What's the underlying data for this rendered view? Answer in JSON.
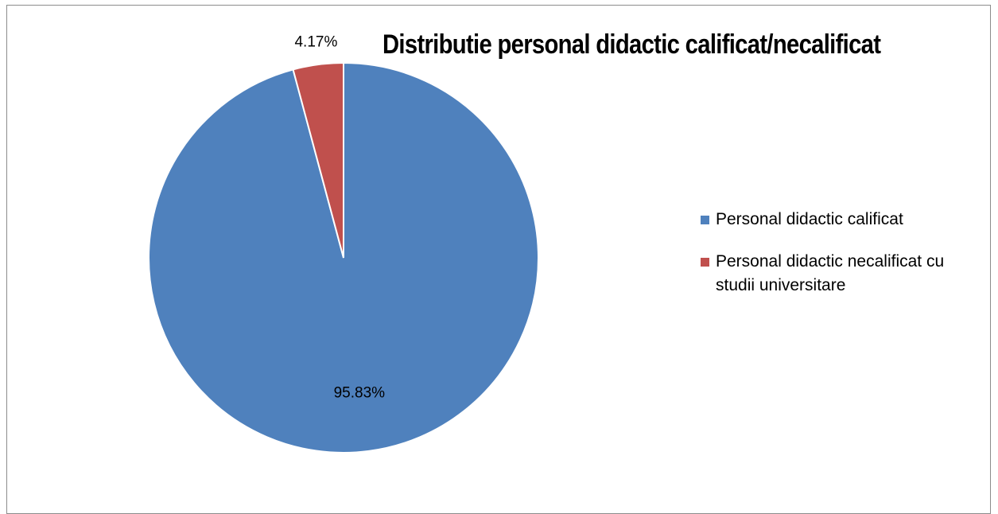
{
  "chart_data": {
    "type": "pie",
    "title": "Distributie personal didactic calificat/necalificat",
    "categories": [
      "Personal didactic calificat",
      "Personal didactic necalificat cu studii universitare"
    ],
    "values": [
      95.83,
      4.17
    ],
    "data_labels": [
      "95.83%",
      "4.17%"
    ],
    "colors": [
      "#4f81bd",
      "#c0504d"
    ],
    "legend_placement": "right",
    "start_angle": "12 o'clock, clockwise"
  }
}
